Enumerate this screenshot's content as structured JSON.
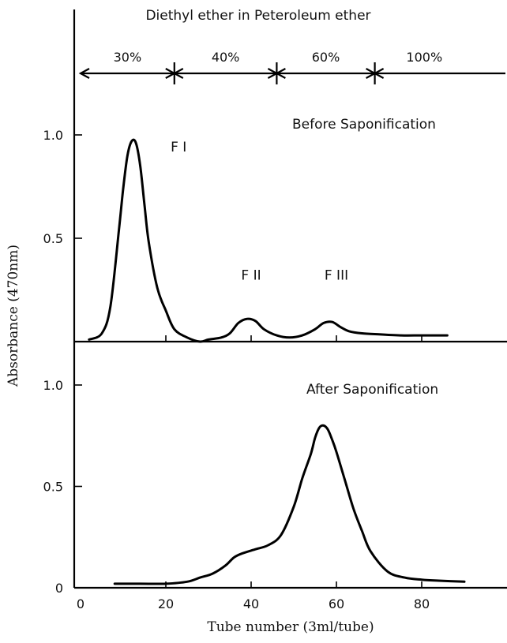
{
  "top_label": "Diethyl ether in Peteroleum ether",
  "gradient_segments": [
    {
      "label": "30%",
      "from": 0,
      "to": 22
    },
    {
      "label": "40%",
      "from": 22,
      "to": 46
    },
    {
      "label": "60%",
      "from": 46,
      "to": 69
    },
    {
      "label": "100%",
      "from": 69,
      "to": 100
    }
  ],
  "chart_data": [
    {
      "type": "line",
      "title": "Before Saponification",
      "xlabel": "Tube number (3ml/tube)",
      "ylabel": "Absorbance (470nm)",
      "xlim": [
        0,
        100
      ],
      "ylim": [
        0,
        1.2
      ],
      "y_ticks": [
        {
          "value": 0.5,
          "label": "0.5"
        },
        {
          "value": 1.0,
          "label": "1.0"
        }
      ],
      "x_tick_marks": [
        20,
        40,
        60,
        80
      ],
      "x": [
        2,
        5,
        7,
        9,
        10,
        11,
        12,
        13,
        14,
        15,
        16,
        18,
        20,
        22,
        25,
        28,
        30,
        33,
        35,
        37,
        39,
        41,
        43,
        46,
        49,
        52,
        55,
        57,
        59,
        61,
        63,
        66,
        70,
        75,
        80,
        86
      ],
      "y": [
        0.01,
        0.04,
        0.17,
        0.54,
        0.74,
        0.9,
        0.97,
        0.96,
        0.85,
        0.66,
        0.48,
        0.26,
        0.15,
        0.06,
        0.02,
        0.0,
        0.01,
        0.02,
        0.04,
        0.09,
        0.11,
        0.1,
        0.06,
        0.03,
        0.02,
        0.03,
        0.06,
        0.09,
        0.095,
        0.07,
        0.05,
        0.04,
        0.035,
        0.03,
        0.03,
        0.03
      ],
      "annotations": [
        {
          "text": "F I",
          "x": 23,
          "y": 0.92
        },
        {
          "text": "F II",
          "x": 40,
          "y": 0.3
        },
        {
          "text": "F III",
          "x": 60,
          "y": 0.3
        }
      ]
    },
    {
      "type": "line",
      "title": "After Saponification",
      "xlabel": "Tube number (3ml/tube)",
      "ylabel": "Absorbance (470nm)",
      "xlim": [
        0,
        100
      ],
      "ylim": [
        0,
        1.0
      ],
      "y_ticks": [
        {
          "value": 0,
          "label": "0"
        },
        {
          "value": 0.5,
          "label": "0.5"
        },
        {
          "value": 1.0,
          "label": "1.0"
        }
      ],
      "x_ticks": [
        {
          "value": 0,
          "label": "0"
        },
        {
          "value": 20,
          "label": "20"
        },
        {
          "value": 40,
          "label": "40"
        },
        {
          "value": 60,
          "label": "60"
        },
        {
          "value": 80,
          "label": "80"
        }
      ],
      "x": [
        8,
        14,
        20,
        25,
        28,
        31,
        34,
        36,
        38,
        41,
        44,
        47,
        50,
        52,
        54,
        55,
        56,
        57,
        58,
        59,
        60,
        62,
        64,
        66,
        68,
        72,
        76,
        80,
        84,
        90
      ],
      "y": [
        0.02,
        0.02,
        0.02,
        0.03,
        0.05,
        0.07,
        0.11,
        0.15,
        0.17,
        0.19,
        0.21,
        0.26,
        0.4,
        0.54,
        0.66,
        0.74,
        0.79,
        0.8,
        0.78,
        0.73,
        0.67,
        0.53,
        0.39,
        0.28,
        0.18,
        0.08,
        0.05,
        0.04,
        0.035,
        0.03
      ]
    }
  ]
}
